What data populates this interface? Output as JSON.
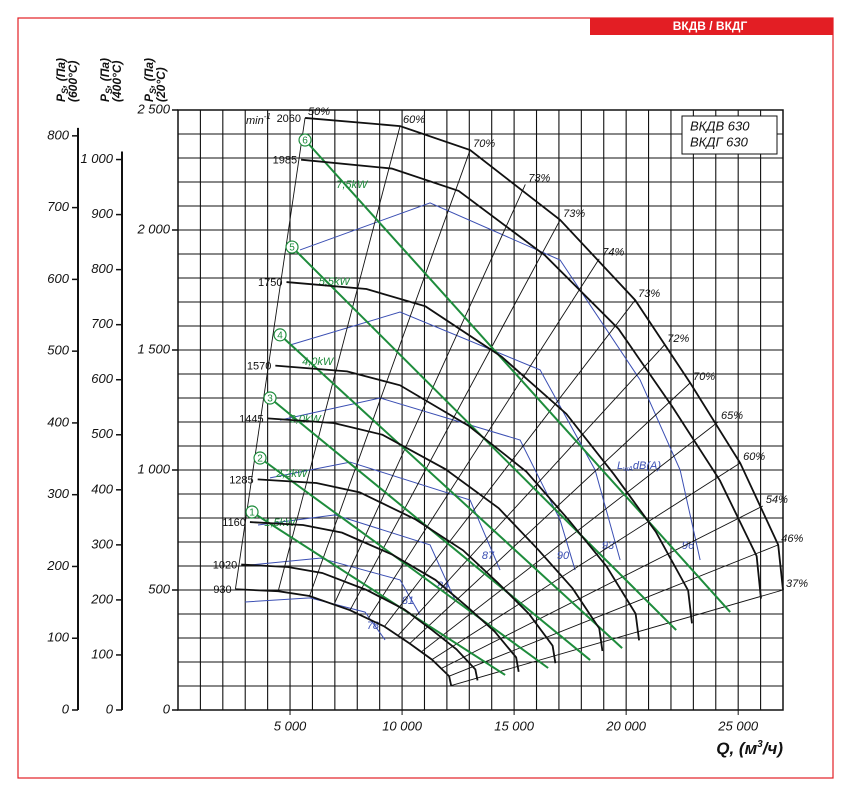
{
  "frame_tab": "ВКДВ / ВКДГ",
  "chart_data": {
    "type": "line",
    "legend_box": [
      "ВКДВ 630",
      "ВКДГ 630"
    ],
    "rpm_unit": {
      "base": "min",
      "sup": "-1"
    },
    "x_title": {
      "main": "Q, (м",
      "sup": "3",
      "end": "/ч)"
    },
    "y_title": {
      "name": "P",
      "sub": "S",
      "unit": ", (Па)",
      "temp": "(20°C)"
    },
    "xlim": [
      0,
      27000
    ],
    "xticks": [
      {
        "value": 5000,
        "label": "5 000"
      },
      {
        "value": 10000,
        "label": "10 000"
      },
      {
        "value": 15000,
        "label": "15 000"
      },
      {
        "value": 20000,
        "label": "20 000"
      },
      {
        "value": 25000,
        "label": "25 000"
      }
    ],
    "ylim": [
      0,
      2500
    ],
    "yticks": [
      0,
      500,
      {
        "value": 1000,
        "label": "1 000"
      },
      {
        "value": 1500,
        "label": "1 500"
      },
      {
        "value": 2000,
        "label": "2 000"
      },
      {
        "value": 2500,
        "label": "2 500"
      }
    ],
    "minor_xticks": [
      1000,
      2000,
      3000,
      4000,
      5000,
      6000,
      7000,
      8000,
      9000,
      10000,
      11000,
      12000,
      13000,
      14000,
      15000,
      16000,
      17000,
      18000,
      19000,
      20000,
      21000,
      22000,
      23000,
      24000,
      25000,
      26000
    ],
    "minor_yticks": [
      100,
      200,
      300,
      400,
      500,
      600,
      700,
      800,
      900,
      1000,
      1100,
      1200,
      1300,
      1400,
      1500,
      1600,
      1700,
      1800,
      1900,
      2000,
      2100,
      2200,
      2300,
      2400
    ],
    "grid": true,
    "extra_axes": [
      {
        "title": {
          "name": "P",
          "sub": "S",
          "unit": ", (Па)",
          "temp": "(400°C)"
        },
        "ylim": [
          0,
          1090
        ],
        "yticks": [
          0,
          100,
          200,
          300,
          400,
          500,
          600,
          700,
          800,
          900,
          {
            "value": 1000,
            "label": "1 000"
          }
        ]
      },
      {
        "title": {
          "name": "P",
          "sub": "S",
          "unit": ", (Па)",
          "temp": "(600°C)"
        },
        "ylim": [
          0,
          836
        ],
        "yticks": [
          0,
          100,
          200,
          300,
          400,
          500,
          600,
          700,
          800
        ]
      }
    ],
    "series": [
      {
        "name": "2060",
        "color": "#111111",
        "x": [
          5670,
          9910,
          13036,
          17054,
          20402,
          22857,
          25089,
          26786,
          27000
        ],
        "values": [
          2467,
          2433,
          2333,
          2042,
          1708,
          1363,
          1029,
          688,
          500
        ]
      },
      {
        "name": "1985",
        "color": "#111111",
        "x": [
          5493,
          9540,
          12527,
          16381,
          19657,
          22066,
          24186,
          25824,
          26017
        ],
        "values": [
          2293,
          2256,
          2163,
          1894,
          1588,
          1263,
          956,
          641,
          464
        ]
      },
      {
        "name": "1750",
        "color": "#111111",
        "x": [
          4842,
          8410,
          11044,
          14442,
          17330,
          19454,
          21322,
          22767,
          22937
        ],
        "values": [
          1783,
          1754,
          1682,
          1472,
          1234,
          982,
          743,
          498,
          361
        ]
      },
      {
        "name": "1570",
        "color": "#111111",
        "x": [
          4344,
          7545,
          9907,
          12956,
          15547,
          17452,
          19129,
          20424,
          20577
        ],
        "values": [
          1435,
          1411,
          1353,
          1185,
          993,
          790,
          598,
          401,
          290
        ]
      },
      {
        "name": "1445",
        "color": "#111111",
        "x": [
          3999,
          6945,
          9120,
          11926,
          14311,
          16064,
          17608,
          18800,
          18941
        ],
        "values": [
          1215,
          1196,
          1147,
          1004,
          841,
          669,
          507,
          340,
          246
        ]
      },
      {
        "name": "1285",
        "color": "#111111",
        "x": [
          3556,
          6176,
          8109,
          10605,
          12726,
          14285,
          15657,
          16718,
          16843
        ],
        "values": [
          961,
          946,
          907,
          794,
          665,
          529,
          401,
          268,
          195
        ]
      },
      {
        "name": "1160",
        "color": "#111111",
        "x": [
          3210,
          5575,
          7320,
          9573,
          11488,
          12895,
          14134,
          15091,
          15204
        ],
        "values": [
          783,
          771,
          739,
          647,
          542,
          431,
          327,
          219,
          159
        ]
      },
      {
        "name": "1020",
        "color": "#111111",
        "x": [
          2822,
          4901,
          6436,
          8417,
          10100,
          11338,
          12427,
          13269,
          13368
        ],
        "values": [
          606,
          596,
          571,
          500,
          419,
          333,
          253,
          169,
          123
        ]
      },
      {
        "name": "930",
        "color": "#111111",
        "x": [
          2574,
          4470,
          5870,
          7676,
          9211,
          10339,
          11333,
          12100,
          12191
        ],
        "values": [
          503,
          495,
          475,
          416,
          348,
          277,
          210,
          141,
          102
        ]
      }
    ],
    "efficiency_lines": [
      {
        "name": "50%",
        "x": [
          5670,
          2560
        ],
        "values": [
          2467,
          503
        ]
      },
      {
        "name": "60%",
        "x": [
          9910,
          4470
        ],
        "values": [
          2433,
          495
        ]
      },
      {
        "name": "70%",
        "x": [
          13036,
          5870
        ],
        "values": [
          2333,
          475
        ]
      },
      {
        "name": "73%",
        "x": [
          15500,
          6994
        ],
        "values": [
          2190,
          446
        ]
      },
      {
        "name": "73%",
        "x": [
          17054,
          7676
        ],
        "values": [
          2042,
          416
        ]
      },
      {
        "name": "74%",
        "x": [
          18800,
          8506
        ],
        "values": [
          1880,
          384
        ]
      },
      {
        "name": "73%",
        "x": [
          20402,
          9211
        ],
        "values": [
          1708,
          348
        ]
      },
      {
        "name": "72%",
        "x": [
          21700,
          9816
        ],
        "values": [
          1520,
          310
        ]
      },
      {
        "name": "70%",
        "x": [
          22857,
          10339
        ],
        "values": [
          1363,
          277
        ]
      },
      {
        "name": "65%",
        "x": [
          24100,
          10884
        ],
        "values": [
          1200,
          244
        ]
      },
      {
        "name": "60%",
        "x": [
          25089,
          11333
        ],
        "values": [
          1029,
          210
        ]
      },
      {
        "name": "54%",
        "x": [
          26100,
          11771
        ],
        "values": [
          850,
          174
        ]
      },
      {
        "name": "46%",
        "x": [
          26786,
          12100
        ],
        "values": [
          688,
          141
        ]
      },
      {
        "name": "37%",
        "x": [
          27000,
          12191
        ],
        "values": [
          500,
          102
        ]
      }
    ],
    "power_lines": [
      {
        "name": "7,5kW",
        "number": "6",
        "color": "#1e8c3c",
        "x": [
          5670,
          24643
        ],
        "values": [
          2375,
          408
        ]
      },
      {
        "name": "5,5kW",
        "number": "5",
        "color": "#1e8c3c",
        "x": [
          5089,
          22232
        ],
        "values": [
          1929,
          333
        ]
      },
      {
        "name": "4,0kW",
        "number": "4",
        "color": "#1e8c3c",
        "x": [
          4554,
          19821
        ],
        "values": [
          1563,
          258
        ]
      },
      {
        "name": "3,0kW",
        "number": "3",
        "color": "#1e8c3c",
        "x": [
          4107,
          18393
        ],
        "values": [
          1300,
          208
        ]
      },
      {
        "name": "2,2kW",
        "number": "2",
        "color": "#1e8c3c",
        "x": [
          3661,
          16518
        ],
        "values": [
          1050,
          175
        ]
      },
      {
        "name": "1,5kW",
        "number": "1",
        "color": "#1e8c3c",
        "x": [
          3304,
          14598
        ],
        "values": [
          825,
          146
        ]
      }
    ],
    "noise_title": {
      "base": "L",
      "sub": "wA",
      "end": "dB(A)"
    },
    "noise_curves": [
      {
        "name": "96",
        "color": "#3b4fb3",
        "x": [
          5446,
          11249,
          17052,
          20624,
          22409,
          23302
        ],
        "values": [
          1917,
          2113,
          1875,
          1375,
          1000,
          625
        ]
      },
      {
        "name": "93",
        "color": "#3b4fb3",
        "x": [
          5000,
          9910,
          16160,
          18615,
          19731
        ],
        "values": [
          1521,
          1658,
          1417,
          1000,
          625
        ]
      },
      {
        "name": "90",
        "color": "#3b4fb3",
        "x": [
          4553,
          9017,
          15267,
          17052,
          17722
        ],
        "values": [
          1208,
          1300,
          1125,
          792,
          583
        ]
      },
      {
        "name": "87",
        "color": "#3b4fb3",
        "x": [
          4107,
          7678,
          13035,
          14374
        ],
        "values": [
          967,
          1033,
          875,
          583
        ]
      },
      {
        "name": "84",
        "color": "#3b4fb3",
        "x": [
          3571,
          7008,
          11249,
          12365
        ],
        "values": [
          771,
          813,
          688,
          458
        ]
      },
      {
        "name": "81",
        "color": "#3b4fb3",
        "x": [
          3214,
          6339,
          9910,
          10803
        ],
        "values": [
          604,
          633,
          542,
          396
        ]
      },
      {
        "name": "78",
        "color": "#3b4fb3",
        "x": [
          2991,
          5892,
          8348,
          9241
        ],
        "values": [
          450,
          467,
          408,
          292
        ]
      }
    ]
  }
}
